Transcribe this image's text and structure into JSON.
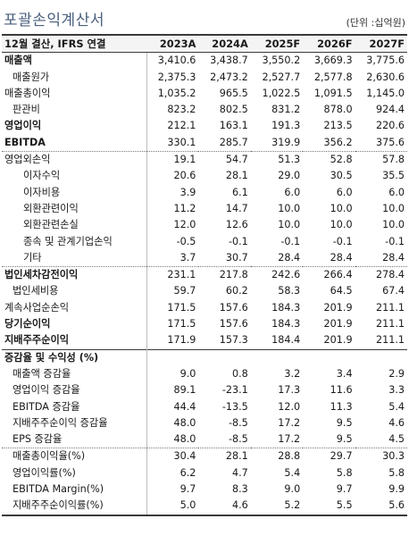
{
  "title": "포괄손익계산서",
  "unit": "(단위 :십억원)",
  "header": {
    "label": "12월 결산, IFRS 연결",
    "columns": [
      "2023A",
      "2024A",
      "2025F",
      "2026F",
      "2027F"
    ]
  },
  "rows": [
    {
      "label": "매출액",
      "values": [
        "3,410.6",
        "3,438.7",
        "3,550.2",
        "3,669.3",
        "3,775.6"
      ]
    },
    {
      "label": "매출원가",
      "values": [
        "2,375.3",
        "2,473.2",
        "2,527.7",
        "2,577.8",
        "2,630.6"
      ]
    },
    {
      "label": "매출총이익",
      "values": [
        "1,035.2",
        "965.5",
        "1,022.5",
        "1,091.5",
        "1,145.0"
      ]
    },
    {
      "label": "판관비",
      "values": [
        "823.2",
        "802.5",
        "831.2",
        "878.0",
        "924.4"
      ]
    },
    {
      "label": "영업이익",
      "values": [
        "212.1",
        "163.1",
        "191.3",
        "213.5",
        "220.6"
      ]
    },
    {
      "label": "EBITDA",
      "values": [
        "330.1",
        "285.7",
        "319.9",
        "356.2",
        "375.6"
      ]
    },
    {
      "label": "영업외손익",
      "values": [
        "19.1",
        "54.7",
        "51.3",
        "52.8",
        "57.8"
      ]
    },
    {
      "label": "이자수익",
      "values": [
        "20.6",
        "28.1",
        "29.0",
        "30.5",
        "35.5"
      ]
    },
    {
      "label": "이자비용",
      "values": [
        "3.9",
        "6.1",
        "6.0",
        "6.0",
        "6.0"
      ]
    },
    {
      "label": "외환관련이익",
      "values": [
        "11.2",
        "14.7",
        "10.0",
        "10.0",
        "10.0"
      ]
    },
    {
      "label": "외환관련손실",
      "values": [
        "12.0",
        "12.6",
        "10.0",
        "10.0",
        "10.0"
      ]
    },
    {
      "label": "종속 및 관계기업손익",
      "values": [
        "-0.5",
        "-0.1",
        "-0.1",
        "-0.1",
        "-0.1"
      ]
    },
    {
      "label": "기타",
      "values": [
        "3.7",
        "30.7",
        "28.4",
        "28.4",
        "28.4"
      ]
    },
    {
      "label": "법인세차감전이익",
      "values": [
        "231.1",
        "217.8",
        "242.6",
        "266.4",
        "278.4"
      ]
    },
    {
      "label": "법인세비용",
      "values": [
        "59.7",
        "60.2",
        "58.3",
        "64.5",
        "67.4"
      ]
    },
    {
      "label": "계속사업순손익",
      "values": [
        "171.5",
        "157.6",
        "184.3",
        "201.9",
        "211.1"
      ]
    },
    {
      "label": "당기순이익",
      "values": [
        "171.5",
        "157.6",
        "184.3",
        "201.9",
        "211.1"
      ]
    },
    {
      "label": "지배주주순이익",
      "values": [
        "171.9",
        "157.3",
        "184.4",
        "201.9",
        "211.1"
      ]
    },
    {
      "label": "증감율 및 수익성 (%)",
      "values": [
        "",
        "",
        "",
        "",
        ""
      ]
    },
    {
      "label": "매출액 증감율",
      "values": [
        "9.0",
        "0.8",
        "3.2",
        "3.4",
        "2.9"
      ]
    },
    {
      "label": "영업이익 증감율",
      "values": [
        "89.1",
        "-23.1",
        "17.3",
        "11.6",
        "3.3"
      ]
    },
    {
      "label": "EBITDA 증감율",
      "values": [
        "44.4",
        "-13.5",
        "12.0",
        "11.3",
        "5.4"
      ]
    },
    {
      "label": "지배주주순이익 증감율",
      "values": [
        "48.0",
        "-8.5",
        "17.2",
        "9.5",
        "4.6"
      ]
    },
    {
      "label": "EPS 증감율",
      "values": [
        "48.0",
        "-8.5",
        "17.2",
        "9.5",
        "4.5"
      ]
    },
    {
      "label": "매출총이익율(%)",
      "values": [
        "30.4",
        "28.1",
        "28.8",
        "29.7",
        "30.3"
      ]
    },
    {
      "label": "영업이익률(%)",
      "values": [
        "6.2",
        "4.7",
        "5.4",
        "5.8",
        "5.8"
      ]
    },
    {
      "label": "EBITDA Margin(%)",
      "values": [
        "9.7",
        "8.3",
        "9.0",
        "9.7",
        "9.9"
      ]
    },
    {
      "label": "지배주주순이익률(%)",
      "values": [
        "5.0",
        "4.6",
        "5.2",
        "5.5",
        "5.6"
      ]
    }
  ]
}
